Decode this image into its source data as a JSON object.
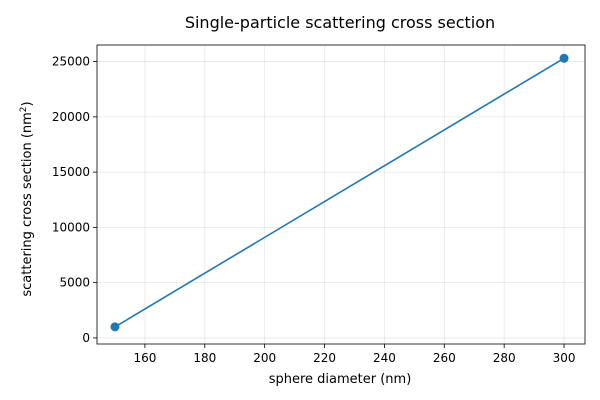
{
  "chart_data": {
    "type": "line",
    "title": "Single-particle scattering cross section",
    "xlabel": "sphere diameter (nm)",
    "ylabel_main": "scattering cross section (nm",
    "ylabel_sup": "2",
    "ylabel_close": ")",
    "xlim": [
      144,
      307
    ],
    "ylim": [
      -550,
      26500
    ],
    "xticks": [
      160,
      180,
      200,
      220,
      240,
      260,
      280,
      300
    ],
    "yticks": [
      0,
      5000,
      10000,
      15000,
      20000,
      25000
    ],
    "grid": true,
    "series": [
      {
        "x": [
          150,
          300
        ],
        "y": [
          1000,
          25300
        ],
        "color": "#1f77b4",
        "marker": "circle"
      }
    ]
  }
}
